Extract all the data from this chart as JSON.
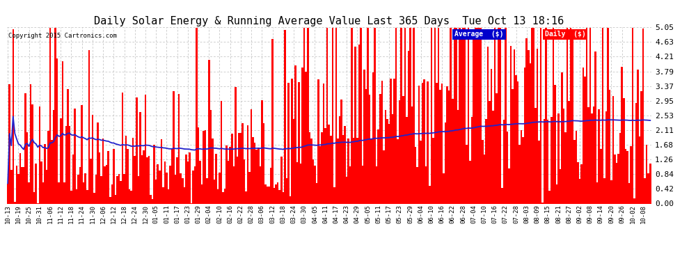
{
  "title": "Daily Solar Energy & Running Average Value Last 365 Days  Tue Oct 13 18:16",
  "copyright": "Copyright 2015 Cartronics.com",
  "ylim": [
    0.0,
    5.05
  ],
  "yticks": [
    0.0,
    0.42,
    0.84,
    1.26,
    1.68,
    2.11,
    2.53,
    2.95,
    3.37,
    3.79,
    4.21,
    4.63,
    5.05
  ],
  "bar_color": "#FF0000",
  "avg_color": "#2222CC",
  "background_color": "#FFFFFF",
  "grid_color": "#BBBBBB",
  "title_fontsize": 11,
  "legend_avg_color": "#0000CC",
  "legend_daily_color": "#FF0000",
  "n_bars": 365,
  "x_labels": [
    "10-13",
    "10-19",
    "10-25",
    "10-31",
    "11-06",
    "11-12",
    "11-18",
    "11-24",
    "11-30",
    "12-06",
    "12-12",
    "12-18",
    "12-24",
    "12-30",
    "01-05",
    "01-11",
    "01-17",
    "01-23",
    "01-29",
    "02-04",
    "02-10",
    "02-16",
    "02-22",
    "02-28",
    "03-06",
    "03-12",
    "03-18",
    "03-24",
    "03-30",
    "04-05",
    "04-11",
    "04-17",
    "04-23",
    "04-29",
    "05-05",
    "05-11",
    "05-17",
    "05-23",
    "05-29",
    "06-04",
    "06-10",
    "06-16",
    "06-22",
    "06-28",
    "07-04",
    "07-10",
    "07-16",
    "07-22",
    "07-28",
    "08-03",
    "08-09",
    "08-15",
    "08-21",
    "08-27",
    "09-02",
    "09-08",
    "09-14",
    "09-20",
    "09-26",
    "10-02",
    "10-08"
  ],
  "tick_step": 6
}
